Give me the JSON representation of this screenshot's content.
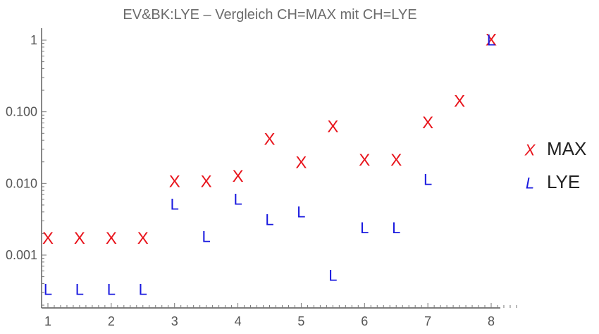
{
  "chart_data": {
    "type": "scatter",
    "title": "EV&BK:LYE – Vergleich CH=MAX mit CH=LYE",
    "xlabel": "",
    "ylabel": "",
    "y_scale": "log",
    "xlim": [
      1,
      8
    ],
    "ylim": [
      0.0002,
      1.3
    ],
    "grid": false,
    "legend_position": "right",
    "x_ticks": [
      1,
      2,
      3,
      4,
      5,
      6,
      7,
      8
    ],
    "y_ticks": [
      {
        "value": 1,
        "label": "1"
      },
      {
        "value": 0.1,
        "label": "0.100"
      },
      {
        "value": 0.01,
        "label": "0.010"
      },
      {
        "value": 0.001,
        "label": "0.001"
      }
    ],
    "series": [
      {
        "name": "MAX",
        "marker": "X",
        "color": "#e8141c",
        "points": [
          {
            "x": 1,
            "y": 0.0017
          },
          {
            "x": 1.5,
            "y": 0.0017
          },
          {
            "x": 2,
            "y": 0.0017
          },
          {
            "x": 2.5,
            "y": 0.0017
          },
          {
            "x": 3,
            "y": 0.0105
          },
          {
            "x": 3.5,
            "y": 0.0105
          },
          {
            "x": 4,
            "y": 0.0125
          },
          {
            "x": 4.5,
            "y": 0.041
          },
          {
            "x": 5,
            "y": 0.0195
          },
          {
            "x": 5.5,
            "y": 0.062
          },
          {
            "x": 6,
            "y": 0.021
          },
          {
            "x": 6.5,
            "y": 0.021
          },
          {
            "x": 7,
            "y": 0.07
          },
          {
            "x": 7.5,
            "y": 0.14
          },
          {
            "x": 8,
            "y": 1
          }
        ]
      },
      {
        "name": "LYE",
        "marker": "L",
        "color": "#1a1adf",
        "points": [
          {
            "x": 1,
            "y": 0.00033
          },
          {
            "x": 1.5,
            "y": 0.00033
          },
          {
            "x": 2,
            "y": 0.00033
          },
          {
            "x": 2.5,
            "y": 0.00033
          },
          {
            "x": 3,
            "y": 0.0051
          },
          {
            "x": 3.5,
            "y": 0.0018
          },
          {
            "x": 4,
            "y": 0.006
          },
          {
            "x": 4.5,
            "y": 0.0031
          },
          {
            "x": 5,
            "y": 0.004
          },
          {
            "x": 5.5,
            "y": 0.00052
          },
          {
            "x": 6,
            "y": 0.0024
          },
          {
            "x": 6.5,
            "y": 0.0024
          },
          {
            "x": 7,
            "y": 0.0113
          },
          {
            "x": 8,
            "y": 1
          }
        ]
      }
    ]
  }
}
